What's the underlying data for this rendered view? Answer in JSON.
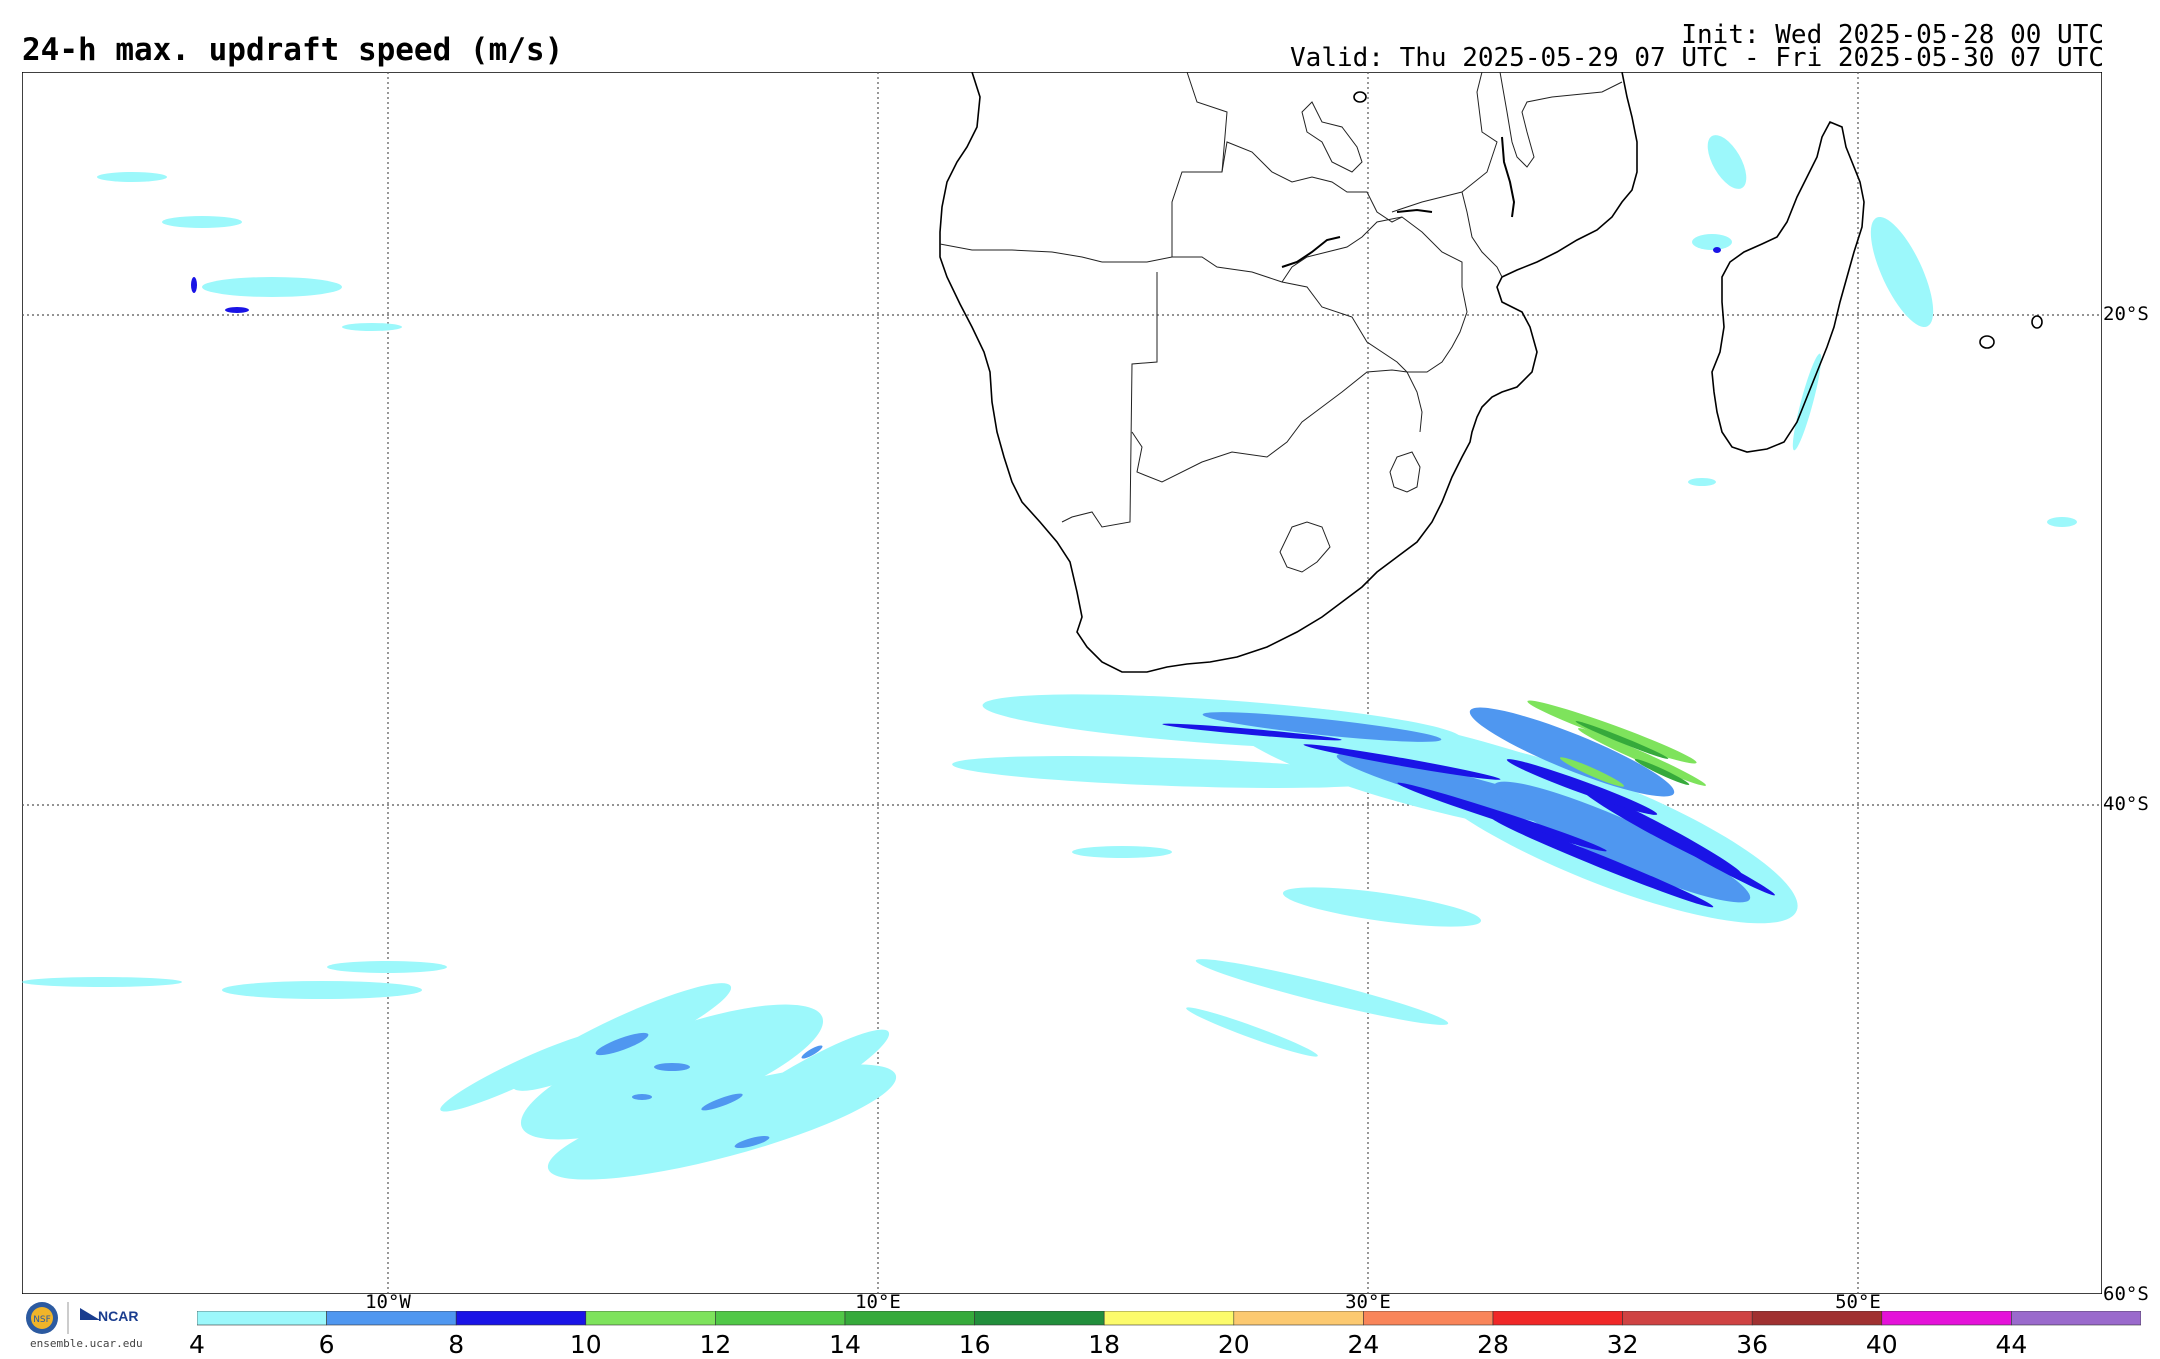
{
  "title": "24-h max. updraft speed (m/s)",
  "init": "Init: Wed 2025-05-28 00 UTC",
  "valid": "Valid: Thu 2025-05-29 07 UTC - Fri 2025-05-30 07 UTC",
  "lat_labels": [
    "20°S",
    "40°S",
    "60°S"
  ],
  "lon_labels": [
    "10°W",
    "10°E",
    "30°E",
    "50°E"
  ],
  "colorbar": {
    "ticks": [
      "4",
      "6",
      "8",
      "10",
      "12",
      "14",
      "16",
      "18",
      "20",
      "24",
      "28",
      "32",
      "36",
      "40",
      "44"
    ],
    "colors": [
      "#9cf8fb",
      "#4f97f0",
      "#1a14e6",
      "#7ee35c",
      "#51c847",
      "#36aa3b",
      "#228e3c",
      "#fcfb6b",
      "#fcc970",
      "#f9855a",
      "#f02727",
      "#cf4343",
      "#a03131",
      "#e412d9",
      "#9a6acc"
    ]
  },
  "logos": {
    "nsf": "NSF",
    "ncar": "NCAR",
    "credit": "ensemble.ucar.edu"
  }
}
